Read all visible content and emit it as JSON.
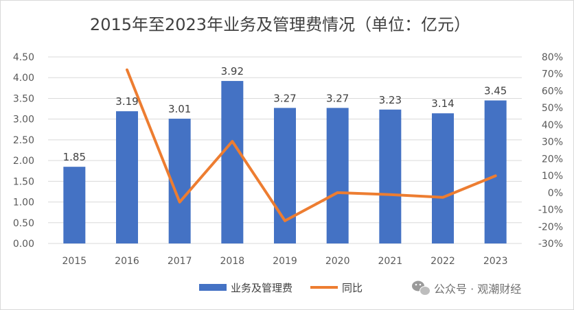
{
  "chart_data": {
    "type": "bar",
    "title": "2015年至2023年业务及管理费情况（单位：亿元）",
    "categories": [
      "2015",
      "2016",
      "2017",
      "2018",
      "2019",
      "2020",
      "2021",
      "2022",
      "2023"
    ],
    "series": [
      {
        "name": "业务及管理费",
        "type": "bar",
        "axis": "left",
        "color": "#4472C4",
        "values": [
          1.85,
          3.19,
          3.01,
          3.92,
          3.27,
          3.27,
          3.23,
          3.14,
          3.45
        ],
        "labels": [
          "1.85",
          "3.19",
          "3.01",
          "3.92",
          "3.27",
          "3.27",
          "3.23",
          "3.14",
          "3.45"
        ]
      },
      {
        "name": "同比",
        "type": "line",
        "axis": "right",
        "color": "#ED7D31",
        "values": [
          null,
          72.4,
          -5.6,
          30.2,
          -16.6,
          0.0,
          -1.2,
          -2.8,
          9.9
        ]
      }
    ],
    "y_left": {
      "min": 0,
      "max": 4.5,
      "step": 0.5,
      "ticks": [
        "0.00",
        "0.50",
        "1.00",
        "1.50",
        "2.00",
        "2.50",
        "3.00",
        "3.50",
        "4.00",
        "4.50"
      ]
    },
    "y_right": {
      "min": -30,
      "max": 80,
      "step": 10,
      "ticks": [
        "-30%",
        "-20%",
        "-10%",
        "0%",
        "10%",
        "20%",
        "30%",
        "40%",
        "50%",
        "60%",
        "70%",
        "80%"
      ]
    },
    "grid": true,
    "legend": "bottom-center"
  },
  "watermark": {
    "text": "公众号 · 观潮财经",
    "icon": "wechat-icon"
  }
}
